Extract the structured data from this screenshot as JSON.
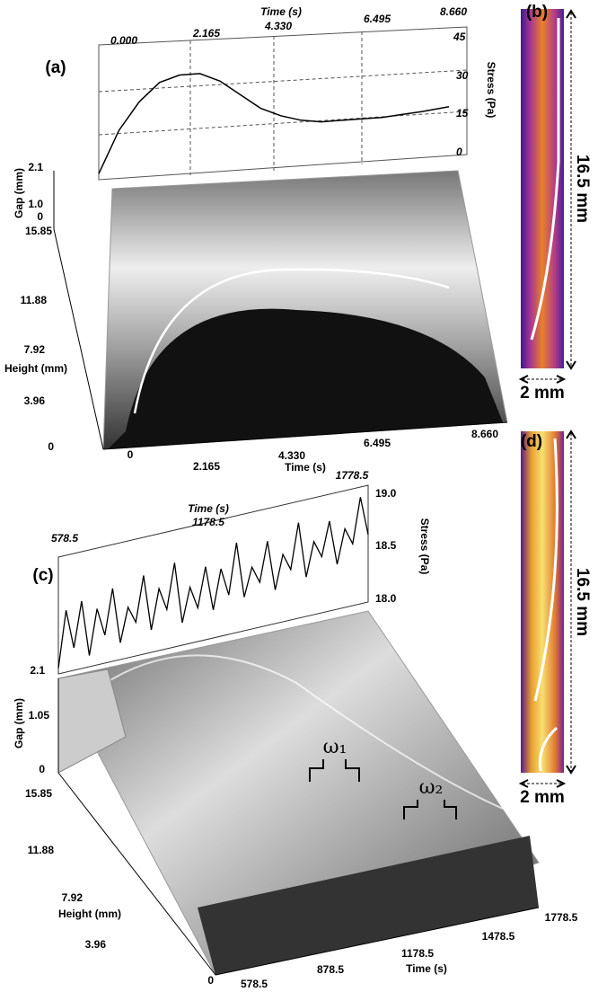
{
  "panels": [
    {
      "label": "(a)",
      "top_axis": {
        "title": "Time (s)",
        "ticks": [
          "0.000",
          "2.165",
          "4.330",
          "6.495",
          "8.660"
        ]
      },
      "stress_axis": {
        "title": "Stress (Pa)",
        "ticks": [
          "45",
          "30",
          "15",
          "0"
        ]
      },
      "stress": {
        "time": [
          0,
          0.5,
          1,
          1.5,
          2,
          2.5,
          3,
          3.5,
          4,
          4.5,
          5,
          5.5,
          6,
          6.5,
          7,
          7.5,
          8,
          8.66
        ],
        "values": [
          2,
          16,
          25,
          31,
          33,
          33,
          30,
          25,
          20,
          17,
          15,
          14,
          14,
          14,
          14,
          14.5,
          15,
          16
        ]
      },
      "gap_axis": {
        "title": "Gap (mm)",
        "ticks": [
          "2.1",
          "1.0",
          "0"
        ]
      },
      "height_axis": {
        "title": "Height (mm)",
        "ticks": [
          "15.85",
          "11.88",
          "7.92",
          "3.96",
          "0"
        ]
      },
      "time_axis": {
        "title": "Time (s)",
        "ticks": [
          "0",
          "2.165",
          "4.330",
          "6.495",
          "8.660"
        ]
      }
    },
    {
      "label": "(b)",
      "length": "16.5 mm",
      "width": "2 mm"
    },
    {
      "label": "(c)",
      "top_axis": {
        "title": "Time (s)",
        "ticks": [
          "578.5",
          "1178.5",
          "1778.5"
        ]
      },
      "stress_axis": {
        "title": "Stress (Pa)",
        "ticks": [
          "19.0",
          "18.5",
          "18.0"
        ]
      },
      "stress": {
        "start": 578.5,
        "step": 30,
        "values": [
          18.05,
          18.55,
          18.2,
          18.6,
          18.1,
          18.5,
          18.25,
          18.65,
          18.15,
          18.45,
          18.3,
          18.7,
          18.2,
          18.55,
          18.35,
          18.75,
          18.2,
          18.5,
          18.3,
          18.65,
          18.25,
          18.6,
          18.35,
          18.8,
          18.3,
          18.55,
          18.4,
          18.75,
          18.3,
          18.6,
          18.45,
          18.85,
          18.35,
          18.65,
          18.5,
          18.8,
          18.4,
          18.7,
          18.55,
          18.95,
          18.6
        ]
      },
      "gap_axis": {
        "title": "Gap (mm)",
        "ticks": [
          "2.1",
          "1.05",
          "0"
        ]
      },
      "height_axis": {
        "title": "Height (mm)",
        "ticks": [
          "15.85",
          "11.88",
          "7.92",
          "3.96",
          "0"
        ]
      },
      "time_axis": {
        "title": "Time (s)",
        "ticks": [
          "578.5",
          "878.5",
          "1178.5",
          "1478.5",
          "1778.5"
        ]
      },
      "annotations": [
        "ω₁",
        "ω₂"
      ]
    },
    {
      "label": "(d)",
      "length": "16.5 mm",
      "width": "2 mm"
    }
  ]
}
